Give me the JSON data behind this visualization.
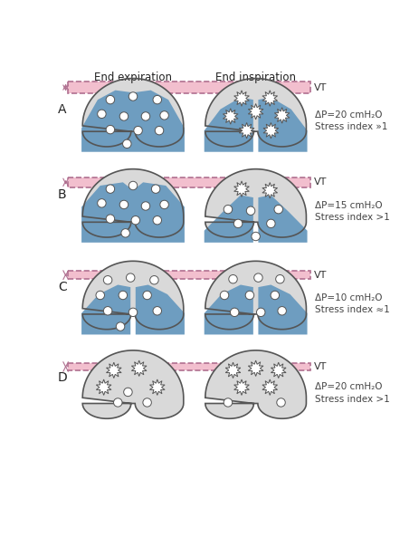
{
  "col_headers": [
    "End expiration",
    "End inspiration"
  ],
  "row_labels": [
    "A",
    "B",
    "C",
    "D"
  ],
  "annotations": [
    "ΔP=20 cmH₂O\nStress index »1",
    "ΔP=15 cmH₂O\nStress index >1",
    "ΔP=10 cmH₂O\nStress index ≈1",
    "ΔP=20 cmH₂O\nStress index >1"
  ],
  "vt_label": "VT",
  "pink_color": "#f2bfce",
  "pink_border": "#b07090",
  "blue_color": "#6e9dc0",
  "lung_fill": "#d9d9d9",
  "lung_border": "#555555",
  "bg_color": "#ffffff",
  "header_fontsize": 8.5,
  "label_fontsize": 10,
  "ann_fontsize": 7.5
}
